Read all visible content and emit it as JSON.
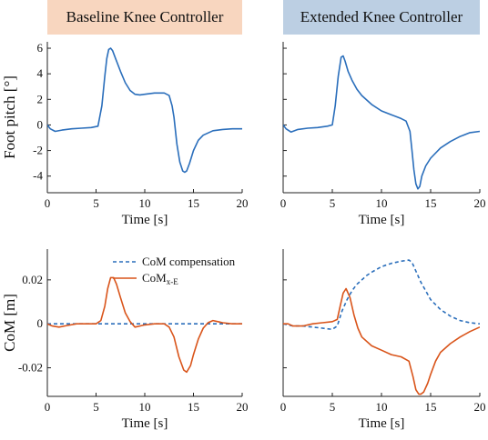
{
  "headers": {
    "left": "Baseline Knee Controller",
    "right": "Extended Knee Controller"
  },
  "colors": {
    "foot_pitch": "#2a6ebb",
    "com_compensation": "#2a6ebb",
    "com_xe": "#d9541a",
    "header_left_bg": "#f8d6bf",
    "header_right_bg": "#bccfe3"
  },
  "chart_data": [
    {
      "id": "foot-pitch-baseline",
      "type": "line",
      "xlabel": "Time [s]",
      "ylabel": "Foot pitch [°]",
      "xlim": [
        0,
        20
      ],
      "ylim": [
        -5.3,
        6.5
      ],
      "xticks": [
        "0",
        "5",
        "10",
        "15",
        "20"
      ],
      "yticks": [
        "-4",
        "-2",
        "0",
        "2",
        "4",
        "6"
      ],
      "series": [
        {
          "x": [
            0,
            0.3,
            0.8,
            1.5,
            2.5,
            3.5,
            4.5,
            5.2,
            5.6,
            5.9,
            6.1,
            6.3,
            6.5,
            6.7,
            7.0,
            7.5,
            8.0,
            8.5,
            9.0,
            9.5,
            10.0,
            11.0,
            12.0,
            12.5,
            12.8,
            13.0,
            13.3,
            13.6,
            13.9,
            14.1,
            14.3,
            14.6,
            15.0,
            15.5,
            16.0,
            17.0,
            18.0,
            19.0,
            20.0
          ],
          "y": [
            0.0,
            -0.3,
            -0.5,
            -0.4,
            -0.3,
            -0.25,
            -0.2,
            -0.1,
            1.5,
            3.8,
            5.2,
            5.9,
            6.0,
            5.8,
            5.2,
            4.2,
            3.3,
            2.7,
            2.4,
            2.35,
            2.4,
            2.5,
            2.5,
            2.3,
            1.5,
            0.6,
            -1.5,
            -2.9,
            -3.6,
            -3.7,
            -3.6,
            -3.0,
            -2.0,
            -1.2,
            -0.8,
            -0.45,
            -0.35,
            -0.3,
            -0.3
          ]
        }
      ]
    },
    {
      "id": "foot-pitch-extended",
      "type": "line",
      "xlabel": "Time [s]",
      "ylabel": "",
      "xlim": [
        0,
        20
      ],
      "ylim": [
        -5.3,
        6.5
      ],
      "xticks": [
        "0",
        "5",
        "10",
        "15",
        "20"
      ],
      "yticks": [],
      "series": [
        {
          "x": [
            0,
            0.3,
            0.8,
            1.5,
            2.5,
            3.5,
            4.5,
            5.0,
            5.3,
            5.6,
            5.9,
            6.1,
            6.3,
            6.6,
            7.0,
            7.5,
            8.0,
            9.0,
            10.0,
            11.0,
            12.0,
            12.5,
            12.9,
            13.1,
            13.3,
            13.5,
            13.7,
            13.9,
            14.1,
            14.5,
            15.0,
            16.0,
            17.0,
            18.0,
            19.0,
            20.0
          ],
          "y": [
            0.0,
            -0.3,
            -0.55,
            -0.35,
            -0.25,
            -0.2,
            -0.1,
            0.0,
            1.5,
            3.8,
            5.3,
            5.4,
            5.0,
            4.2,
            3.5,
            2.8,
            2.3,
            1.6,
            1.1,
            0.8,
            0.5,
            0.3,
            -0.5,
            -2.0,
            -3.5,
            -4.6,
            -5.0,
            -4.8,
            -4.0,
            -3.2,
            -2.6,
            -1.8,
            -1.3,
            -0.9,
            -0.6,
            -0.5
          ]
        }
      ]
    },
    {
      "id": "com-baseline",
      "type": "line",
      "xlabel": "Time [s]",
      "ylabel": "CoM [m]",
      "xlim": [
        0,
        20
      ],
      "ylim": [
        -0.033,
        0.034
      ],
      "xticks": [
        "0",
        "5",
        "10",
        "15",
        "20"
      ],
      "yticks": [
        "-0.02",
        "0",
        "0.02"
      ],
      "legend": [
        "CoM compensation",
        "CoM"
      ],
      "legend_sub": "x-E",
      "series": [
        {
          "name": "CoM compensation",
          "style": "dashed",
          "x": [
            0,
            20
          ],
          "y": [
            0.0,
            0.0
          ]
        },
        {
          "name": "CoM x-E",
          "style": "solid",
          "x": [
            0,
            0.5,
            1.2,
            2.0,
            3.0,
            4.0,
            5.0,
            5.5,
            5.9,
            6.2,
            6.5,
            6.8,
            7.1,
            7.5,
            8.0,
            8.5,
            9.0,
            9.5,
            10.0,
            11.0,
            12.0,
            12.5,
            13.0,
            13.5,
            14.0,
            14.3,
            14.7,
            15.0,
            15.5,
            16.0,
            16.5,
            17.0,
            17.5,
            18.0,
            19.0,
            20.0
          ],
          "y": [
            0.0,
            -0.001,
            -0.0015,
            -0.0008,
            0.0,
            0.0,
            0.0,
            0.0015,
            0.008,
            0.016,
            0.021,
            0.021,
            0.018,
            0.012,
            0.005,
            0.001,
            -0.0015,
            -0.001,
            -0.0005,
            0.0,
            0.0,
            -0.0015,
            -0.006,
            -0.015,
            -0.021,
            -0.022,
            -0.019,
            -0.014,
            -0.007,
            -0.002,
            0.0005,
            0.0015,
            0.001,
            0.0005,
            0.0,
            0.0
          ]
        }
      ]
    },
    {
      "id": "com-extended",
      "type": "line",
      "xlabel": "Time [s]",
      "ylabel": "",
      "xlim": [
        0,
        20
      ],
      "ylim": [
        -0.033,
        0.034
      ],
      "xticks": [
        "0",
        "5",
        "10",
        "15",
        "20"
      ],
      "yticks": [],
      "series": [
        {
          "name": "CoM compensation",
          "style": "dashed",
          "x": [
            0,
            1.0,
            2.0,
            3.0,
            4.0,
            5.0,
            5.5,
            6.0,
            6.5,
            7.0,
            7.5,
            8.0,
            8.5,
            9.0,
            10.0,
            11.0,
            12.0,
            12.8,
            13.1,
            13.5,
            14.0,
            14.5,
            15.0,
            16.0,
            17.0,
            18.0,
            19.0,
            20.0
          ],
          "y": [
            0.0,
            -0.001,
            -0.001,
            -0.0015,
            -0.002,
            -0.0025,
            -0.001,
            0.006,
            0.011,
            0.015,
            0.018,
            0.02,
            0.022,
            0.0235,
            0.026,
            0.0275,
            0.0285,
            0.029,
            0.028,
            0.024,
            0.019,
            0.015,
            0.011,
            0.0065,
            0.0035,
            0.0015,
            0.0005,
            0.0
          ]
        },
        {
          "name": "CoM x-E",
          "style": "solid",
          "x": [
            0,
            0.5,
            1.0,
            2.0,
            3.0,
            4.0,
            5.0,
            5.5,
            5.8,
            6.1,
            6.4,
            6.8,
            7.2,
            7.6,
            8.0,
            9.0,
            10.0,
            11.0,
            12.0,
            12.8,
            13.2,
            13.5,
            13.8,
            14.0,
            14.3,
            14.7,
            15.0,
            15.5,
            16.0,
            17.0,
            18.0,
            19.0,
            20.0
          ],
          "y": [
            0.0,
            0.0,
            -0.001,
            -0.001,
            0.0,
            0.0005,
            0.001,
            0.002,
            0.008,
            0.014,
            0.016,
            0.012,
            0.004,
            -0.002,
            -0.006,
            -0.01,
            -0.012,
            -0.014,
            -0.015,
            -0.017,
            -0.024,
            -0.03,
            -0.032,
            -0.032,
            -0.031,
            -0.027,
            -0.023,
            -0.017,
            -0.013,
            -0.009,
            -0.006,
            -0.0035,
            -0.0015
          ]
        }
      ]
    }
  ]
}
